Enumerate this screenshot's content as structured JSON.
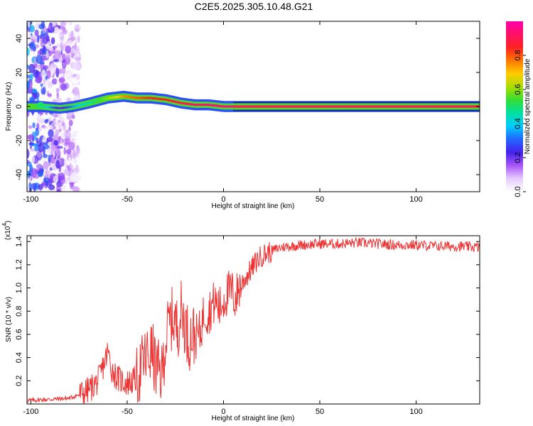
{
  "title": "C2E5.2025.305.10.48.G21",
  "colors": {
    "snr_line": "#ee3333",
    "axis": "#000000",
    "colormap": [
      "#ffffff",
      "#e6ccff",
      "#a855f7",
      "#4422ee",
      "#2266ff",
      "#00ccff",
      "#00e0a0",
      "#33dd33",
      "#aadd00",
      "#ffcc00",
      "#ff7700",
      "#ff2222",
      "#ff1166",
      "#ff00aa"
    ]
  },
  "chart_data": [
    {
      "type": "heatmap",
      "xlabel": "Height of straight line (km)",
      "ylabel": "Frequency (Hz)",
      "xlim": [
        -102,
        133
      ],
      "ylim": [
        -50,
        50
      ],
      "x_ticks": [
        -100,
        -50,
        0,
        50,
        100
      ],
      "y_ticks": [
        -40,
        -20,
        0,
        20,
        40
      ],
      "colorbar": {
        "label": "Normalized spectral amplitude",
        "range": [
          0,
          1
        ],
        "ticks": [
          0.0,
          0.2,
          0.4,
          0.6,
          0.8
        ]
      },
      "ridge": {
        "x": [
          -102,
          -95,
          -85,
          -78,
          -70,
          -60,
          -52,
          -45,
          -38,
          -30,
          -22,
          -15,
          -8,
          0,
          5,
          15,
          30,
          60,
          100,
          133
        ],
        "freq": [
          0,
          0,
          -1,
          0,
          2,
          5,
          6,
          5,
          5,
          4,
          2,
          1,
          1,
          0,
          0,
          0,
          0,
          0,
          0,
          0
        ],
        "amplitude": [
          0.6,
          0.5,
          0.2,
          0.35,
          0.45,
          0.6,
          0.75,
          0.8,
          0.85,
          0.85,
          0.9,
          0.92,
          0.94,
          0.95,
          0.96,
          0.97,
          0.98,
          0.98,
          0.98,
          0.98
        ]
      },
      "noise_region_x": [
        -102,
        -75
      ]
    },
    {
      "type": "line",
      "xlabel": "Height of straight line (km)",
      "ylabel": "SNR (10 * v/v)",
      "y_exponent_label": "(x10",
      "y_exponent": "4",
      "y_exponent_close": ")",
      "xlim": [
        -102,
        133
      ],
      "ylim": [
        0,
        1.45
      ],
      "x_ticks": [
        -100,
        -50,
        0,
        50,
        100
      ],
      "y_ticks": [
        0.2,
        0.4,
        0.6,
        0.8,
        1.0,
        1.2,
        1.4
      ],
      "series": [
        {
          "x": [
            -102,
            -90,
            -80,
            -75,
            -70,
            -65,
            -62,
            -60,
            -58,
            -55,
            -50,
            -47,
            -45,
            -42,
            -40,
            -37,
            -35,
            -32,
            -30,
            -28,
            -26,
            -24,
            -22,
            -20,
            -18,
            -16,
            -14,
            -12,
            -10,
            -8,
            -6,
            -4,
            -2,
            0,
            2,
            4,
            6,
            8,
            10,
            12,
            14,
            16,
            18,
            20,
            25,
            30,
            40,
            50,
            60,
            70,
            80,
            90,
            100,
            110,
            120,
            133
          ],
          "y": [
            0.03,
            0.04,
            0.05,
            0.08,
            0.12,
            0.2,
            0.35,
            0.45,
            0.3,
            0.22,
            0.18,
            0.2,
            0.22,
            0.35,
            0.4,
            0.45,
            0.3,
            0.25,
            0.55,
            0.7,
            0.75,
            0.65,
            0.8,
            0.7,
            0.55,
            0.6,
            0.58,
            0.62,
            0.8,
            0.78,
            0.85,
            0.88,
            0.82,
            0.9,
            0.95,
            0.98,
            0.9,
            1.0,
            1.05,
            1.1,
            1.15,
            1.2,
            1.25,
            1.28,
            1.32,
            1.35,
            1.37,
            1.38,
            1.38,
            1.39,
            1.38,
            1.37,
            1.37,
            1.36,
            1.36,
            1.35
          ]
        }
      ]
    }
  ]
}
